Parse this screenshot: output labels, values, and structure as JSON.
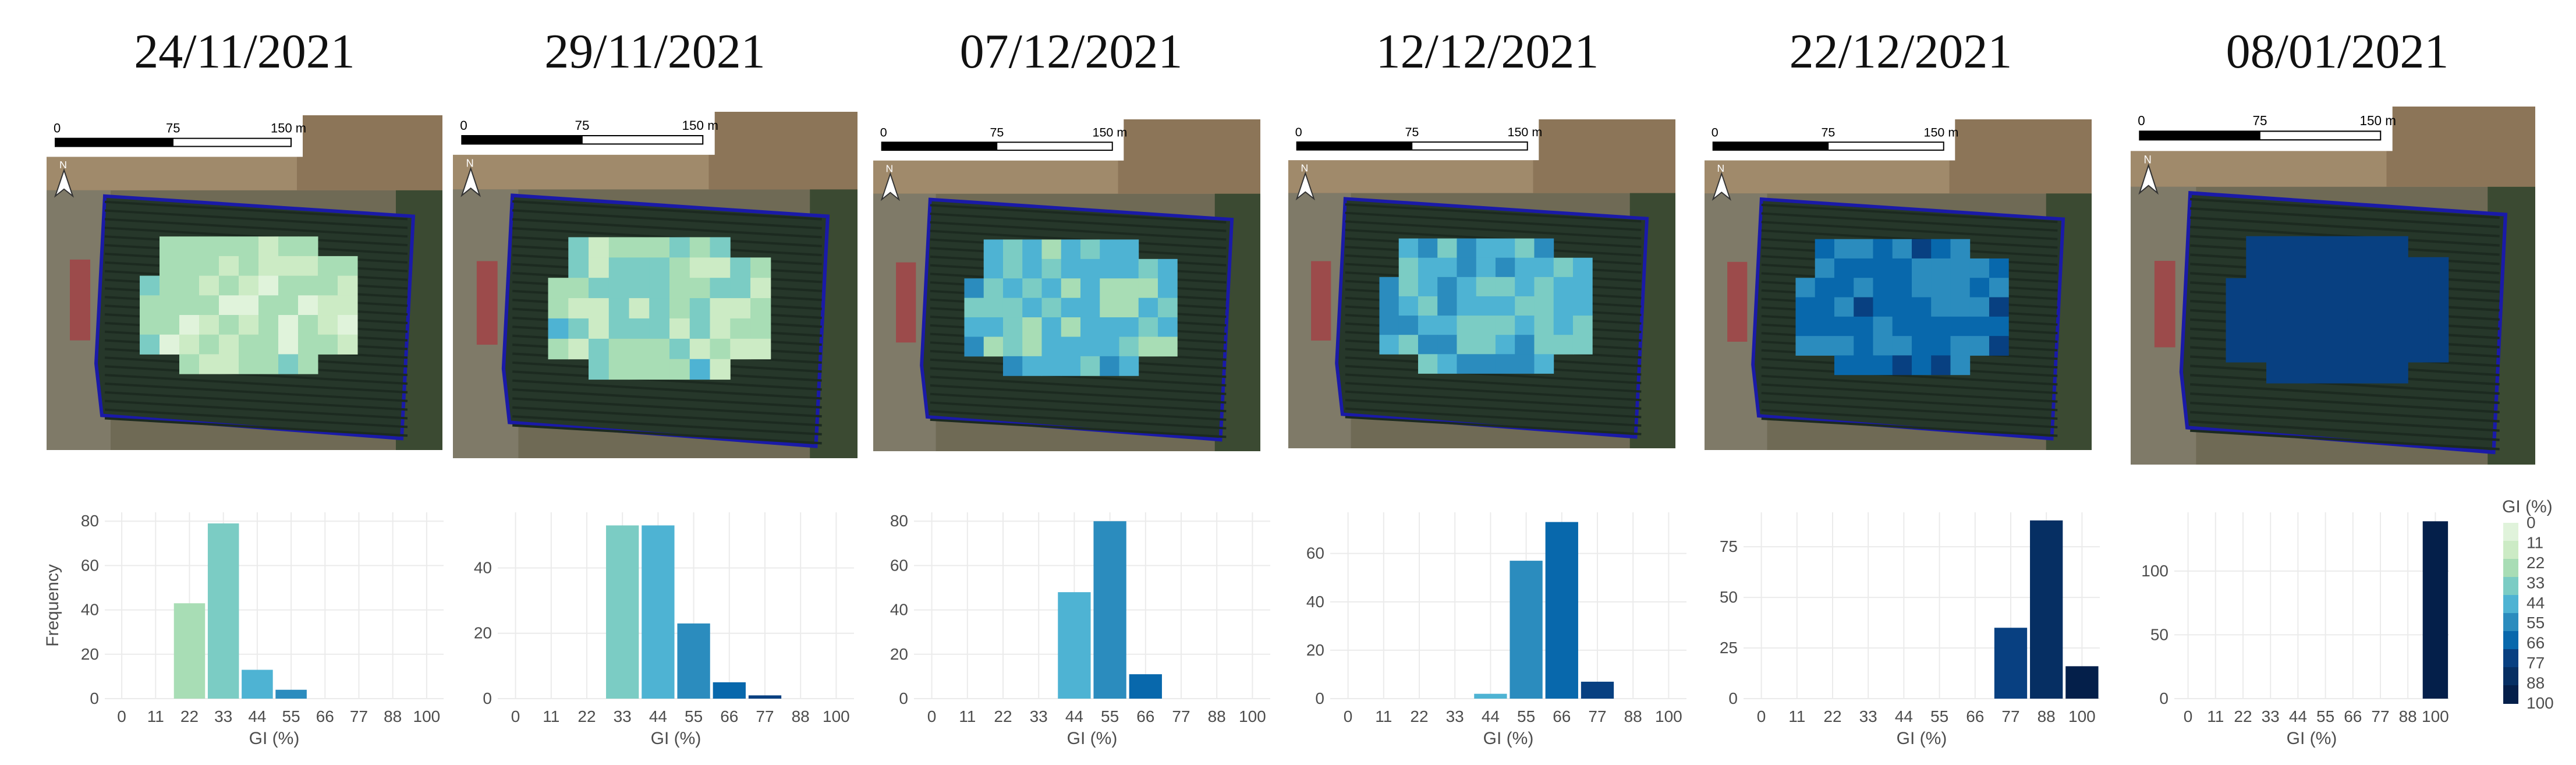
{
  "colors": {
    "gi_scale": [
      "#f7fcf0",
      "#e0f3db",
      "#ccebc5",
      "#a8ddb5",
      "#7bccc4",
      "#4eb3d3",
      "#2b8cbe",
      "#0868ac",
      "#084081",
      "#062f63",
      "#041f4a"
    ],
    "grid": "#ebebeb",
    "plot_outline": "#1a1aa8"
  },
  "panels": [
    {
      "date": "24/11/2021",
      "scale": {
        "start": "0",
        "mid": "75",
        "end": "150 m"
      },
      "north": "N"
    },
    {
      "date": "29/11/2021",
      "scale": {
        "start": "0",
        "mid": "75",
        "end": "150 m"
      },
      "north": "N"
    },
    {
      "date": "07/12/2021",
      "scale": {
        "start": "0",
        "mid": "75",
        "end": "150 m"
      },
      "north": "N"
    },
    {
      "date": "12/12/2021",
      "scale": {
        "start": "0",
        "mid": "75",
        "end": "150 m"
      },
      "north": "N"
    },
    {
      "date": "22/12/2021",
      "scale": {
        "start": "0",
        "mid": "75",
        "end": "150 m"
      },
      "north": "N"
    },
    {
      "date": "08/01/2021",
      "scale": {
        "start": "0",
        "mid": "75",
        "end": "150 m"
      },
      "north": "N"
    }
  ],
  "chart_data": [
    {
      "type": "bar",
      "title": "",
      "xlabel": "GI (%)",
      "ylabel": "Frequency",
      "categories": [
        "0",
        "11",
        "22",
        "33",
        "44",
        "55",
        "66",
        "77",
        "88",
        "100"
      ],
      "values": [
        0,
        0,
        43,
        79,
        13,
        4,
        0,
        0,
        0,
        0
      ],
      "yticks": [
        0,
        20,
        40,
        60,
        80
      ],
      "ylim": [
        0,
        84
      ]
    },
    {
      "type": "bar",
      "title": "",
      "xlabel": "GI (%)",
      "ylabel": "",
      "categories": [
        "0",
        "11",
        "22",
        "33",
        "44",
        "55",
        "66",
        "77",
        "88",
        "100"
      ],
      "values": [
        0,
        0,
        0,
        53,
        53,
        23,
        5,
        1,
        0,
        0
      ],
      "yticks": [
        0,
        20,
        40
      ],
      "ylim": [
        0,
        57
      ]
    },
    {
      "type": "bar",
      "title": "",
      "xlabel": "GI (%)",
      "ylabel": "",
      "categories": [
        "0",
        "11",
        "22",
        "33",
        "44",
        "55",
        "66",
        "77",
        "88",
        "100"
      ],
      "values": [
        0,
        0,
        0,
        0,
        48,
        80,
        11,
        0,
        0,
        0
      ],
      "yticks": [
        0,
        20,
        40,
        60,
        80
      ],
      "ylim": [
        0,
        84
      ]
    },
    {
      "type": "bar",
      "title": "",
      "xlabel": "GI (%)",
      "ylabel": "",
      "categories": [
        "0",
        "11",
        "22",
        "33",
        "44",
        "55",
        "66",
        "77",
        "88",
        "100"
      ],
      "values": [
        0,
        0,
        0,
        0,
        2,
        57,
        73,
        7,
        0,
        0
      ],
      "yticks": [
        0,
        20,
        40,
        60
      ],
      "ylim": [
        0,
        77
      ]
    },
    {
      "type": "bar",
      "title": "",
      "xlabel": "GI (%)",
      "ylabel": "",
      "categories": [
        "0",
        "11",
        "22",
        "33",
        "44",
        "55",
        "66",
        "77",
        "88",
        "100"
      ],
      "values": [
        0,
        0,
        0,
        0,
        0,
        0,
        0,
        35,
        88,
        16
      ],
      "yticks": [
        0,
        25,
        50,
        75
      ],
      "ylim": [
        0,
        92
      ]
    },
    {
      "type": "bar",
      "title": "",
      "xlabel": "GI (%)",
      "ylabel": "",
      "categories": [
        "0",
        "11",
        "22",
        "33",
        "44",
        "55",
        "66",
        "77",
        "88",
        "100"
      ],
      "values": [
        0,
        0,
        0,
        0,
        0,
        0,
        0,
        0,
        0,
        139
      ],
      "yticks": [
        0,
        50,
        100
      ],
      "ylim": [
        0,
        146
      ],
      "legend": {
        "title": "GI (%)",
        "entries": [
          "0",
          "11",
          "22",
          "33",
          "44",
          "55",
          "66",
          "77",
          "88",
          "100"
        ],
        "placement": "right"
      }
    }
  ]
}
